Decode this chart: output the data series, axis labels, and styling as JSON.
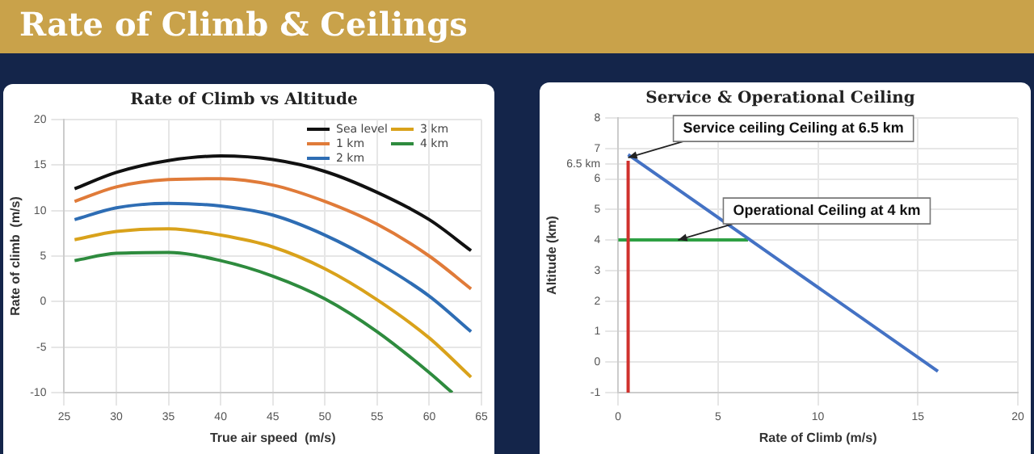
{
  "chart_data": [
    {
      "type": "other",
      "title": "Rate of Climb & Ceilings"
    },
    {
      "type": "line",
      "title": "Rate of Climb vs Altitude",
      "xlabel": "True air speed  (m/s)",
      "ylabel": "Rate of climb  (m/s)",
      "x": [
        26,
        30,
        35,
        40,
        45,
        50,
        55,
        60,
        64
      ],
      "series": [
        {
          "name": "Sea level",
          "color": "#111111",
          "values": [
            12.4,
            14.2,
            15.5,
            16,
            15.6,
            14.3,
            12.0,
            9,
            5.6
          ]
        },
        {
          "name": "1 km",
          "color": "#e07b39",
          "values": [
            11,
            12.6,
            13.4,
            13.5,
            12.8,
            11,
            8.5,
            5,
            1.4
          ]
        },
        {
          "name": "2 km",
          "color": "#2e6db4",
          "values": [
            9,
            10.3,
            10.8,
            10.5,
            9.5,
            7.3,
            4.3,
            0.6,
            -3.3
          ]
        },
        {
          "name": "3 km",
          "color": "#d9a21b",
          "values": [
            6.8,
            7.7,
            8,
            7.3,
            6,
            3.6,
            0.2,
            -4,
            -8.3
          ]
        },
        {
          "name": "4 km",
          "color": "#2e8b3e",
          "x": [
            26,
            30,
            35,
            40,
            45,
            50,
            55,
            60,
            62.2
          ],
          "values": [
            4.5,
            5.3,
            5.4,
            4.5,
            2.8,
            0.3,
            -3.3,
            -7.8,
            -10
          ]
        }
      ],
      "xlim": [
        25,
        65
      ],
      "xticks": [
        25,
        30,
        35,
        40,
        45,
        50,
        55,
        60,
        65
      ],
      "ylim": [
        -10,
        20
      ],
      "yticks": [
        -10,
        -5,
        0,
        5,
        10,
        15,
        20
      ],
      "grid": true,
      "legend": "top right"
    },
    {
      "type": "line",
      "title": "Service & Operational Ceiling",
      "xlabel": "Rate of Climb (m/s)",
      "ylabel": "Altitude (km)",
      "series": [
        {
          "color": "#4472c4",
          "x": [
            0.5,
            16
          ],
          "values": [
            6.8,
            -0.3
          ]
        },
        {
          "color": "#d0312d",
          "x": [
            0.5,
            0.5
          ],
          "values": [
            -1,
            6.6
          ]
        },
        {
          "color": "#2ea043",
          "x": [
            0,
            6.5
          ],
          "values": [
            4,
            4
          ]
        }
      ],
      "xlim": [
        0,
        20
      ],
      "xticks": [
        0,
        5,
        10,
        15,
        20
      ],
      "ylim": [
        -1,
        8
      ],
      "yticks": [
        -1,
        0,
        1,
        2,
        3,
        4,
        5,
        6,
        {
          "value": 6.5,
          "label": "6.5 km"
        },
        7,
        8
      ],
      "grid": true,
      "annotations": [
        {
          "text": "Service ceiling Ceiling at 6.5 km",
          "x": 0.5,
          "y": 6.7
        },
        {
          "text": "Operational Ceiling at 4 km",
          "x": 3,
          "y": 4
        }
      ]
    }
  ]
}
